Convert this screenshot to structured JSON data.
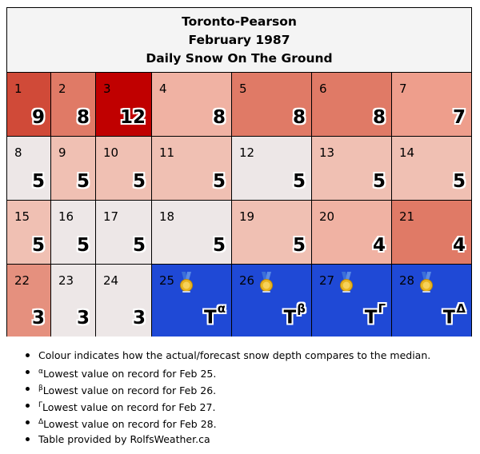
{
  "title": {
    "line1": "Toronto-Pearson",
    "line2": "February 1987",
    "line3": "Daily Snow On The Ground"
  },
  "days": [
    {
      "day": "1",
      "value": "9",
      "bg": "#d04a38"
    },
    {
      "day": "2",
      "value": "8",
      "bg": "#e07a66"
    },
    {
      "day": "3",
      "value": "12",
      "bg": "#c00000"
    },
    {
      "day": "4",
      "value": "8",
      "bg": "#f0b2a3"
    },
    {
      "day": "5",
      "value": "8",
      "bg": "#e07a66"
    },
    {
      "day": "6",
      "value": "8",
      "bg": "#e07a66"
    },
    {
      "day": "7",
      "value": "7",
      "bg": "#ee9e8c"
    },
    {
      "day": "8",
      "value": "5",
      "bg": "#ede7e7"
    },
    {
      "day": "9",
      "value": "5",
      "bg": "#f0c0b3"
    },
    {
      "day": "10",
      "value": "5",
      "bg": "#f0c0b3"
    },
    {
      "day": "11",
      "value": "5",
      "bg": "#f0c0b3"
    },
    {
      "day": "12",
      "value": "5",
      "bg": "#ede7e7"
    },
    {
      "day": "13",
      "value": "5",
      "bg": "#f0c0b3"
    },
    {
      "day": "14",
      "value": "5",
      "bg": "#f0c0b3"
    },
    {
      "day": "15",
      "value": "5",
      "bg": "#f0c0b3"
    },
    {
      "day": "16",
      "value": "5",
      "bg": "#ede7e7"
    },
    {
      "day": "17",
      "value": "5",
      "bg": "#ede7e7"
    },
    {
      "day": "18",
      "value": "5",
      "bg": "#ede7e7"
    },
    {
      "day": "19",
      "value": "5",
      "bg": "#f0c0b3"
    },
    {
      "day": "20",
      "value": "4",
      "bg": "#f0b2a3"
    },
    {
      "day": "21",
      "value": "4",
      "bg": "#e07a66"
    },
    {
      "day": "22",
      "value": "3",
      "bg": "#e5907e"
    },
    {
      "day": "23",
      "value": "3",
      "bg": "#ede7e7"
    },
    {
      "day": "24",
      "value": "3",
      "bg": "#ede7e7"
    },
    {
      "day": "25",
      "value": "T",
      "sup": "α",
      "bg": "#1f49d6",
      "medal": true
    },
    {
      "day": "26",
      "value": "T",
      "sup": "β",
      "bg": "#1f49d6",
      "medal": true
    },
    {
      "day": "27",
      "value": "T",
      "sup": "Γ",
      "bg": "#1f49d6",
      "medal": true
    },
    {
      "day": "28",
      "value": "T",
      "sup": "Δ",
      "bg": "#1f49d6",
      "medal": true
    }
  ],
  "notes": [
    {
      "sup": "",
      "text": "Colour indicates how the actual/forecast snow depth compares to the median."
    },
    {
      "sup": "α",
      "text": "Lowest value on record for Feb 25."
    },
    {
      "sup": "β",
      "text": "Lowest value on record for Feb 26."
    },
    {
      "sup": "Γ",
      "text": "Lowest value on record for Feb 27."
    },
    {
      "sup": "Δ",
      "text": "Lowest value on record for Feb 28."
    },
    {
      "sup": "",
      "text": "Table provided by RolfsWeather.ca"
    }
  ],
  "icons": {
    "medal": "medal-icon"
  },
  "colors": {
    "record_low": "#1f49d6",
    "median": "#ede7e7",
    "max": "#c00000"
  }
}
